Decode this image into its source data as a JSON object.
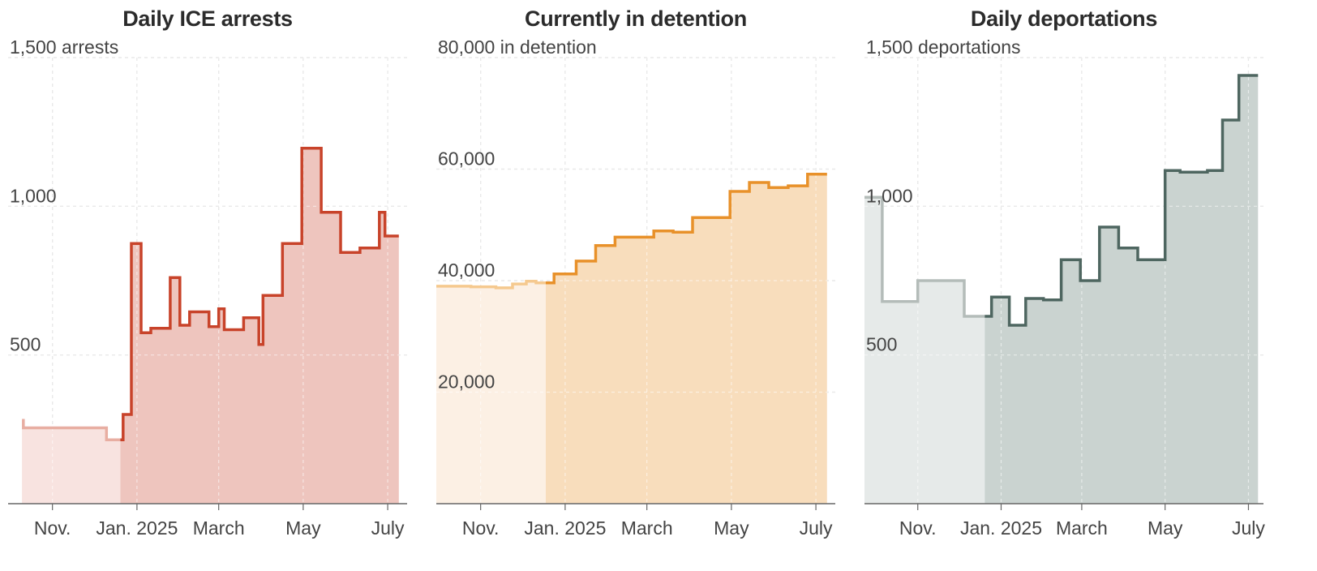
{
  "chart_data": [
    {
      "type": "area",
      "title": "Daily ICE arrests",
      "unit_suffix": " arrests",
      "ylim": [
        0,
        1500
      ],
      "y_ticks": [
        500,
        1000,
        1500
      ],
      "y_tick_labels": [
        "500",
        "1,000",
        "1,500 arrests"
      ],
      "x_ticks": [
        {
          "date": "2024-11-01",
          "label": "Nov."
        },
        {
          "date": "2025-01-01",
          "label": "Jan. 2025"
        },
        {
          "date": "2025-03-01",
          "label": "March"
        },
        {
          "date": "2025-05-01",
          "label": "May"
        },
        {
          "date": "2025-07-01",
          "label": "July"
        }
      ],
      "xlim": [
        "2024-09-30",
        "2025-07-15"
      ],
      "split_date": "2024-12-20",
      "end_date": "2025-07-09",
      "colors": {
        "line": "#c8432a",
        "fill": "#eec5be",
        "line_light": "#e8aea2",
        "fill_light": "#f8e3e0"
      },
      "steps": [
        {
          "date": "2024-10-10",
          "value": 280
        },
        {
          "date": "2024-10-11",
          "value": 255
        },
        {
          "date": "2024-12-10",
          "value": 215
        },
        {
          "date": "2024-12-22",
          "value": 300
        },
        {
          "date": "2024-12-28",
          "value": 875
        },
        {
          "date": "2025-01-04",
          "value": 575
        },
        {
          "date": "2025-01-11",
          "value": 590
        },
        {
          "date": "2025-01-25",
          "value": 760
        },
        {
          "date": "2025-02-01",
          "value": 600
        },
        {
          "date": "2025-02-08",
          "value": 645
        },
        {
          "date": "2025-02-22",
          "value": 595
        },
        {
          "date": "2025-03-01",
          "value": 655
        },
        {
          "date": "2025-03-05",
          "value": 585
        },
        {
          "date": "2025-03-19",
          "value": 625
        },
        {
          "date": "2025-03-30",
          "value": 535
        },
        {
          "date": "2025-04-02",
          "value": 700
        },
        {
          "date": "2025-04-16",
          "value": 875
        },
        {
          "date": "2025-04-30",
          "value": 1195
        },
        {
          "date": "2025-05-14",
          "value": 980
        },
        {
          "date": "2025-05-28",
          "value": 845
        },
        {
          "date": "2025-06-11",
          "value": 860
        },
        {
          "date": "2025-06-25",
          "value": 980
        },
        {
          "date": "2025-06-29",
          "value": 900
        }
      ]
    },
    {
      "type": "area",
      "title": "Currently in detention",
      "unit_suffix": " in detention",
      "ylim": [
        0,
        80000
      ],
      "y_ticks": [
        20000,
        40000,
        60000,
        80000
      ],
      "y_tick_labels": [
        "20,000",
        "40,000",
        "60,000",
        "80,000 in detention"
      ],
      "x_ticks": [
        {
          "date": "2024-11-01",
          "label": "Nov."
        },
        {
          "date": "2025-01-01",
          "label": "Jan. 2025"
        },
        {
          "date": "2025-03-01",
          "label": "March"
        },
        {
          "date": "2025-05-01",
          "label": "May"
        },
        {
          "date": "2025-07-01",
          "label": "July"
        }
      ],
      "xlim": [
        "2024-09-30",
        "2025-07-15"
      ],
      "split_date": "2024-12-18",
      "end_date": "2025-07-09",
      "colors": {
        "line": "#e8912a",
        "fill": "#f8ddbc",
        "line_light": "#f5c98f",
        "fill_light": "#fcf0e4"
      },
      "steps": [
        {
          "date": "2024-09-30",
          "value": 39000
        },
        {
          "date": "2024-10-25",
          "value": 38900
        },
        {
          "date": "2024-11-12",
          "value": 38700
        },
        {
          "date": "2024-11-24",
          "value": 39400
        },
        {
          "date": "2024-12-04",
          "value": 39900
        },
        {
          "date": "2024-12-11",
          "value": 39600
        },
        {
          "date": "2024-12-24",
          "value": 41200
        },
        {
          "date": "2025-01-09",
          "value": 43500
        },
        {
          "date": "2025-01-23",
          "value": 46300
        },
        {
          "date": "2025-02-06",
          "value": 47800
        },
        {
          "date": "2025-03-06",
          "value": 48900
        },
        {
          "date": "2025-03-20",
          "value": 48700
        },
        {
          "date": "2025-04-03",
          "value": 51300
        },
        {
          "date": "2025-04-30",
          "value": 56000
        },
        {
          "date": "2025-05-14",
          "value": 57600
        },
        {
          "date": "2025-05-28",
          "value": 56700
        },
        {
          "date": "2025-06-11",
          "value": 57000
        },
        {
          "date": "2025-06-25",
          "value": 59100
        }
      ]
    },
    {
      "type": "area",
      "title": "Daily deportations",
      "unit_suffix": " deportations",
      "ylim": [
        0,
        1500
      ],
      "y_ticks": [
        500,
        1000,
        1500
      ],
      "y_tick_labels": [
        "500",
        "1,000",
        "1,500 deportations"
      ],
      "x_ticks": [
        {
          "date": "2024-11-01",
          "label": "Nov."
        },
        {
          "date": "2025-01-01",
          "label": "Jan. 2025"
        },
        {
          "date": "2025-03-01",
          "label": "March"
        },
        {
          "date": "2025-05-01",
          "label": "May"
        },
        {
          "date": "2025-07-01",
          "label": "July"
        }
      ],
      "xlim": [
        "2024-09-23",
        "2025-07-12"
      ],
      "split_date": "2024-12-20",
      "end_date": "2025-07-08",
      "colors": {
        "line": "#4e6660",
        "fill": "#cad3d0",
        "line_light": "#b4bcb9",
        "fill_light": "#e6eae9"
      },
      "steps": [
        {
          "date": "2024-09-23",
          "value": 1030
        },
        {
          "date": "2024-10-06",
          "value": 680
        },
        {
          "date": "2024-11-01",
          "value": 750
        },
        {
          "date": "2024-12-05",
          "value": 630
        },
        {
          "date": "2024-12-25",
          "value": 695
        },
        {
          "date": "2025-01-07",
          "value": 600
        },
        {
          "date": "2025-01-19",
          "value": 690
        },
        {
          "date": "2025-02-01",
          "value": 685
        },
        {
          "date": "2025-02-14",
          "value": 820
        },
        {
          "date": "2025-02-28",
          "value": 750
        },
        {
          "date": "2025-03-14",
          "value": 930
        },
        {
          "date": "2025-03-28",
          "value": 860
        },
        {
          "date": "2025-04-11",
          "value": 820
        },
        {
          "date": "2025-05-01",
          "value": 1120
        },
        {
          "date": "2025-05-12",
          "value": 1115
        },
        {
          "date": "2025-06-01",
          "value": 1120
        },
        {
          "date": "2025-06-12",
          "value": 1290
        },
        {
          "date": "2025-06-24",
          "value": 1440
        }
      ]
    }
  ]
}
